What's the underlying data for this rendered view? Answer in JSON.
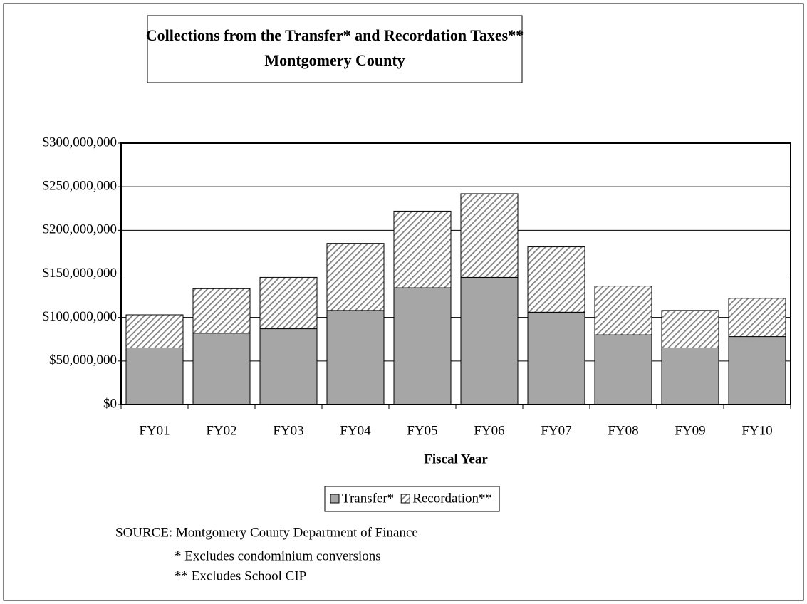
{
  "chart_data": {
    "type": "stacked_bar",
    "title": [
      "Collections from the Transfer* and Recordation Taxes**",
      "Montgomery County"
    ],
    "categories": [
      "FY01",
      "FY02",
      "FY03",
      "FY04",
      "FY05",
      "FY06",
      "FY07",
      "FY08",
      "FY09",
      "FY10"
    ],
    "series": [
      {
        "name": "Transfer*",
        "color": "#a6a6a6",
        "pattern": "solid",
        "values": [
          65000000,
          82000000,
          87000000,
          108000000,
          134000000,
          146000000,
          106000000,
          80000000,
          65000000,
          78000000
        ]
      },
      {
        "name": "Recordation**",
        "color": "#808080",
        "pattern": "diagonal",
        "values": [
          38000000,
          51000000,
          59000000,
          77000000,
          88000000,
          96000000,
          75000000,
          56000000,
          43000000,
          44000000
        ]
      }
    ],
    "xlabel": "Fiscal Year",
    "ylim": [
      0,
      300000000
    ],
    "yticks": [
      {
        "value": 0,
        "label": "$0"
      },
      {
        "value": 50000000,
        "label": "$50,000,000"
      },
      {
        "value": 100000000,
        "label": "$100,000,000"
      },
      {
        "value": 150000000,
        "label": "$150,000,000"
      },
      {
        "value": 200000000,
        "label": "$200,000,000"
      },
      {
        "value": 250000000,
        "label": "$250,000,000"
      },
      {
        "value": 300000000,
        "label": "$300,000,000"
      }
    ],
    "grid": true,
    "legend": "bottom",
    "notes": [
      "SOURCE:  Montgomery County Department of Finance",
      "* Excludes condominium conversions",
      "** Excludes School CIP"
    ]
  }
}
